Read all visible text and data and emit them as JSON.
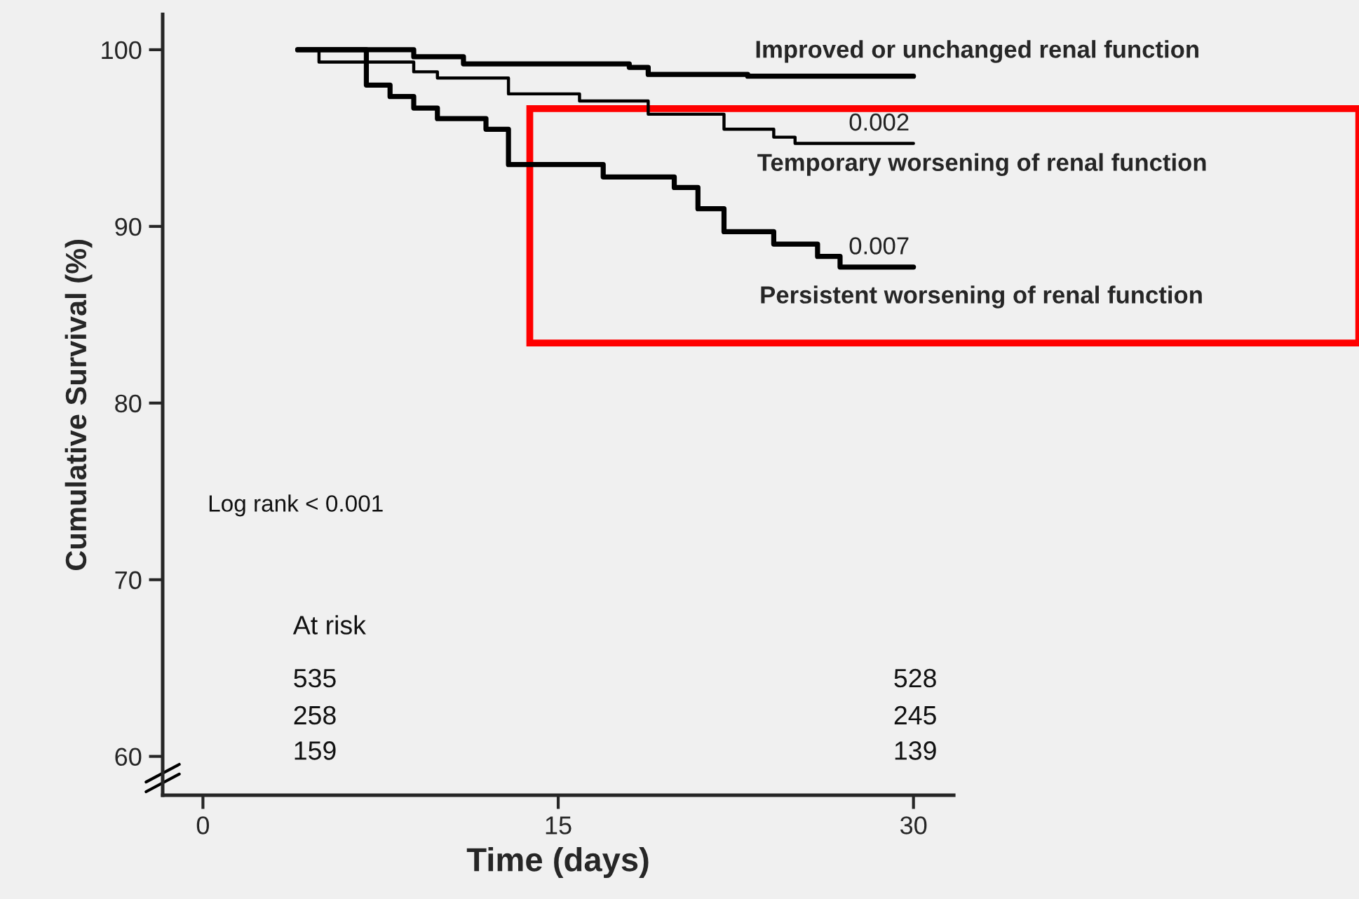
{
  "chart_data": {
    "type": "step",
    "xlabel": "Time (days)",
    "ylabel": "Cumulative Survival (%)",
    "xlim": [
      -1.7,
      31.7
    ],
    "xticks": [
      0,
      15,
      30
    ],
    "ylim": [
      57.8,
      102
    ],
    "yticks": [
      60,
      70,
      80,
      90,
      100
    ],
    "grid": false,
    "legend": false,
    "series": [
      {
        "name": "Improved or unchanged renal function",
        "color": "#000000",
        "x": [
          4,
          8.9,
          11.0,
          18.0,
          18.8,
          23.0,
          30
        ],
        "values": [
          100,
          99.6,
          99.2,
          99.0,
          98.6,
          98.5,
          98.5
        ]
      },
      {
        "name": "Temporary worsening of renal function",
        "color": "#000000",
        "x": [
          4,
          4.9,
          8.9,
          9.9,
          12.9,
          15.9,
          18.8,
          22.0,
          24.1,
          25.0,
          30
        ],
        "values": [
          100,
          99.3,
          98.75,
          98.4,
          97.5,
          97.1,
          96.35,
          95.5,
          95.05,
          94.7,
          94.7
        ]
      },
      {
        "name": "Persistent worsening of renal function",
        "color": "#000000",
        "x": [
          4,
          6.9,
          7.9,
          8.9,
          9.9,
          11.95,
          12.9,
          16.9,
          19.9,
          20.9,
          22.0,
          24.1,
          25.95,
          26.9,
          30
        ],
        "values": [
          100,
          98.0,
          97.35,
          96.7,
          96.1,
          95.5,
          93.5,
          92.8,
          92.2,
          91.0,
          89.7,
          89.0,
          88.3,
          87.7,
          87.7
        ]
      }
    ],
    "annotations": [
      "Log rank < 0.001",
      "At risk",
      "535",
      "528",
      "258",
      "245",
      "159",
      "139",
      {
        "text": "0.002",
        "x": 30,
        "y": 94.7
      },
      {
        "text": "0.007",
        "x": 30,
        "y": 87.7
      }
    ]
  }
}
